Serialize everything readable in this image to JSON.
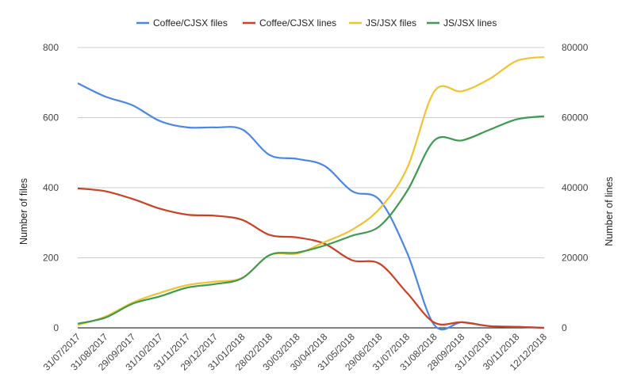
{
  "chart_data": {
    "type": "line",
    "categories": [
      "31/07/2017",
      "31/08/2017",
      "29/09/2017",
      "31/10/2017",
      "31/11/2017",
      "29/12/2017",
      "31/01/2018",
      "28/02/2018",
      "30/03/2018",
      "30/04/2018",
      "31/05/2018",
      "29/06/2018",
      "31/07/2018",
      "31/08/2018",
      "28/09/2018",
      "31/10/2018",
      "30/11/2018",
      "12/12/2018"
    ],
    "y_left": {
      "label": "Number of files",
      "ylim": [
        0,
        800
      ],
      "ticks": [
        "0",
        "200",
        "400",
        "600",
        "800"
      ]
    },
    "y_right": {
      "label": "Number of lines",
      "ylim": [
        0,
        80000
      ],
      "ticks": [
        "0",
        "20000",
        "40000",
        "60000",
        "80000"
      ]
    },
    "legend_position": "top",
    "grid": true,
    "series": [
      {
        "name": "Coffee/CJSX files",
        "axis": "left",
        "color": "#4a86e8",
        "values": [
          698,
          660,
          635,
          590,
          572,
          572,
          566,
          493,
          482,
          462,
          390,
          365,
          215,
          8,
          16,
          5,
          3,
          0
        ]
      },
      {
        "name": "Coffee/CJSX lines",
        "axis": "right",
        "color": "#cc4125",
        "values": [
          39800,
          39000,
          36800,
          34000,
          32300,
          32000,
          30800,
          26500,
          25800,
          24000,
          19300,
          18300,
          10000,
          1500,
          1600,
          500,
          300,
          0
        ]
      },
      {
        "name": "JS/JSX files",
        "axis": "left",
        "color": "#f1c232",
        "values": [
          8,
          32,
          72,
          100,
          122,
          132,
          143,
          208,
          212,
          245,
          280,
          340,
          455,
          675,
          675,
          710,
          762,
          773
        ]
      },
      {
        "name": "JS/JSX lines",
        "axis": "right",
        "color": "#3d9a4f",
        "values": [
          1200,
          2900,
          6900,
          9000,
          11500,
          12500,
          14200,
          20800,
          21500,
          23500,
          26300,
          29000,
          39000,
          53500,
          53500,
          56500,
          59500,
          60400
        ]
      }
    ]
  }
}
